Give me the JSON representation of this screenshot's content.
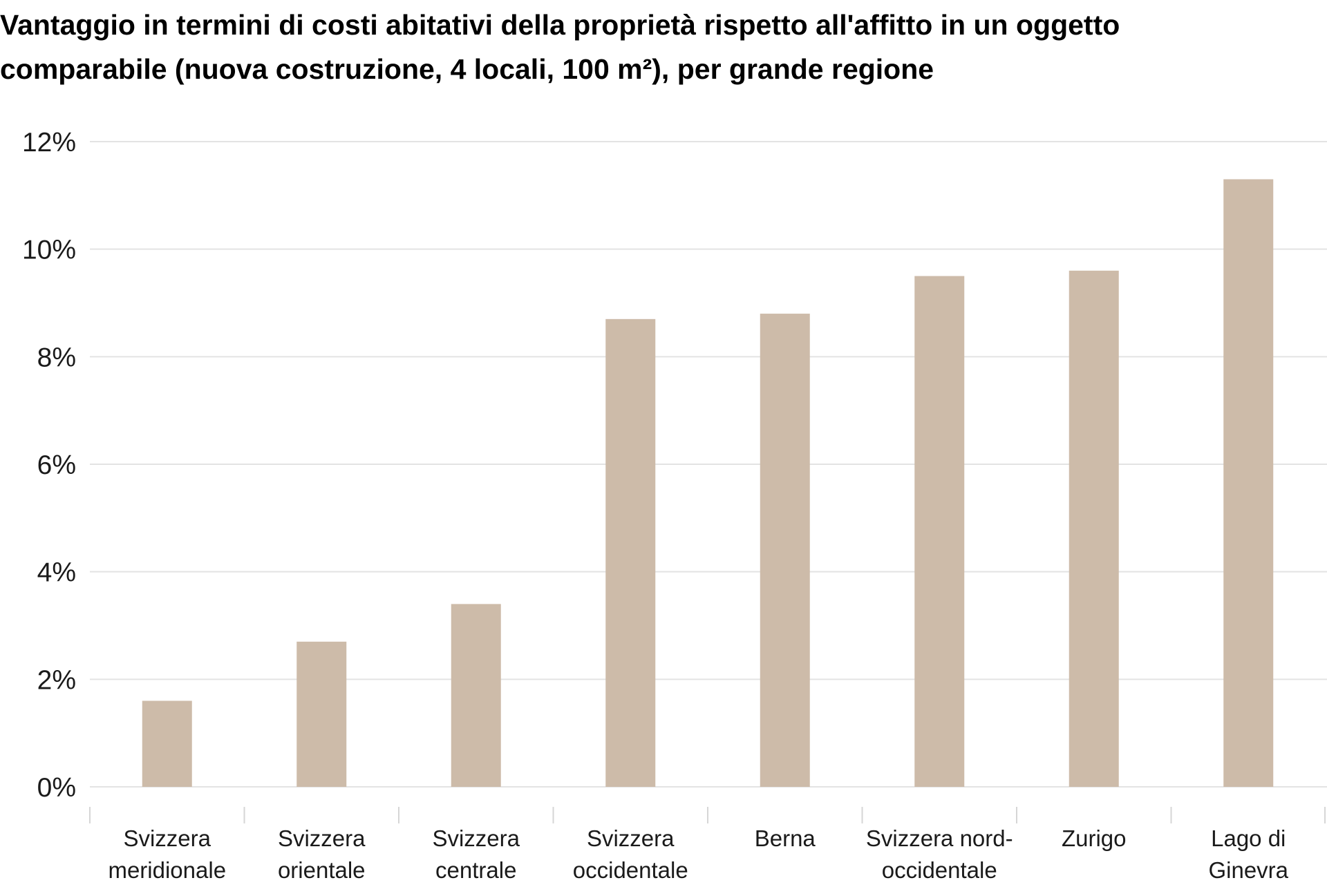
{
  "title_lines": [
    "Vantaggio in termini di costi abitativi della proprietà rispetto all'affitto in un oggetto",
    "comparabile (nuova costruzione, 4 locali, 100 m²), per grande regione"
  ],
  "colors": {
    "bar": "#cdbba9",
    "grid": "#e3e3e3",
    "axis": "#d6d6d6",
    "text": "#1a1a1a"
  },
  "chart_data": {
    "type": "bar",
    "title": "Vantaggio in termini di costi abitativi della proprietà rispetto all'affitto in un oggetto comparabile (nuova costruzione, 4 locali, 100 m²), per grande regione",
    "categories": [
      [
        "Svizzera",
        "meridionale"
      ],
      [
        "Svizzera",
        "orientale"
      ],
      [
        "Svizzera",
        "centrale"
      ],
      [
        "Svizzera",
        "occidentale"
      ],
      [
        "Berna"
      ],
      [
        "Svizzera nord-",
        "occidentale"
      ],
      [
        "Zurigo"
      ],
      [
        "Lago di",
        "Ginevra"
      ]
    ],
    "values": [
      1.6,
      2.7,
      3.4,
      8.7,
      8.8,
      9.5,
      9.6,
      11.3
    ],
    "ylim": [
      0,
      12
    ],
    "yticks": [
      0,
      2,
      4,
      6,
      8,
      10,
      12
    ],
    "ytick_labels": [
      "0%",
      "2%",
      "4%",
      "6%",
      "8%",
      "10%",
      "12%"
    ],
    "unit": "%",
    "grid": true,
    "legend": "none"
  }
}
